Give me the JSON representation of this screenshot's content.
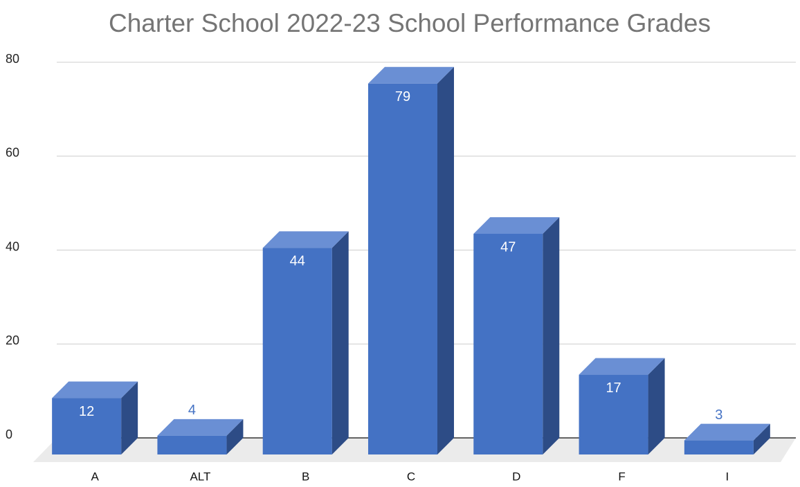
{
  "chart_data": {
    "type": "bar3d",
    "title": "Charter School 2022-23 School Performance Grades",
    "categories": [
      "A",
      "ALT",
      "B",
      "C",
      "D",
      "F",
      "I"
    ],
    "values": [
      12,
      4,
      44,
      79,
      47,
      17,
      3
    ],
    "color": "#4472c4",
    "ylim": [
      0,
      80
    ],
    "yticks": [
      0,
      20,
      40,
      60,
      80
    ],
    "grid": true
  }
}
